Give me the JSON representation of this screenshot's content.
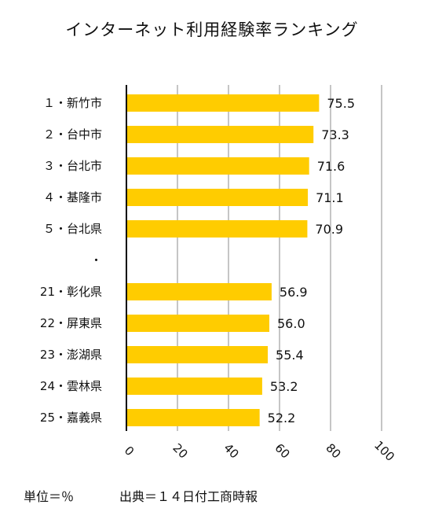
{
  "chart_data": {
    "type": "bar",
    "orientation": "horizontal",
    "title": "インターネット利用経験率ランキング",
    "categories": [
      "１・新竹市",
      "２・台中市",
      "３・台北市",
      "４・基隆市",
      "５・台北県",
      "・",
      "21・彰化県",
      "22・屏東県",
      "23・澎湖県",
      "24・雲林県",
      "25・嘉義県"
    ],
    "values": [
      75.5,
      73.3,
      71.6,
      71.1,
      70.9,
      null,
      56.9,
      56.0,
      55.4,
      53.2,
      52.2
    ],
    "value_labels": [
      "75.5",
      "73.3",
      "71.6",
      "71.1",
      "70.9",
      "",
      "56.9",
      "56.0",
      "55.4",
      "53.2",
      "52.2"
    ],
    "xlim": [
      0,
      100
    ],
    "xticks": [
      0,
      20,
      40,
      60,
      80,
      100
    ],
    "xtick_labels": [
      "0",
      "20",
      "40",
      "60",
      "80",
      "100"
    ],
    "grid": "vertical",
    "bar_color": "#FFCC00",
    "grid_color": "#A6A6A6",
    "axis_color": "#000000",
    "xlabel": "",
    "ylabel": ""
  },
  "footer": {
    "unit": "単位＝％",
    "source": "出典＝１４日付工商時報"
  }
}
